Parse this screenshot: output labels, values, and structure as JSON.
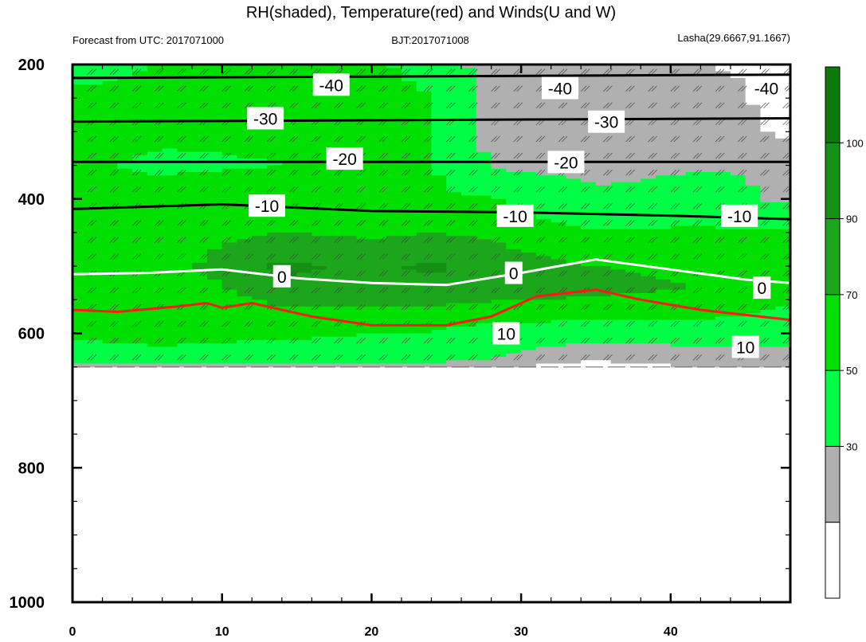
{
  "chart_data": {
    "type": "heatmap",
    "title": "RH(shaded), Temperature(red) and Winds(U and W)",
    "subtitle_left": "Forecast from UTC: 2017071000",
    "subtitle_center": "BJT:2017071008",
    "subtitle_right": "Lasha(29.6667,91.1667)",
    "xlabel": "",
    "ylabel": "",
    "xlim": [
      0,
      48
    ],
    "ylim": [
      1000,
      200
    ],
    "x_ticks": [
      0,
      10,
      20,
      30,
      40
    ],
    "y_ticks": [
      200,
      400,
      600,
      800,
      1000
    ],
    "colorbar": {
      "ticks": [
        "30",
        "50",
        "70",
        "90",
        "100"
      ],
      "levels": [
        0,
        30,
        50,
        70,
        80,
        90,
        100,
        110
      ],
      "colors": [
        "#ffffff",
        "#b0b0b0",
        "#00ff44",
        "#00e000",
        "#1ca61c",
        "#149014",
        "#0b7a0b"
      ]
    },
    "rh_columns": [
      {
        "x": 0,
        "rh": [
          60,
          75,
          75,
          72,
          74,
          75,
          80,
          75,
          70,
          75,
          72,
          68,
          62,
          40
        ]
      },
      {
        "x": 6,
        "rh": [
          72,
          75,
          72,
          68,
          75,
          75,
          75,
          72,
          70,
          72,
          72,
          70,
          62,
          40
        ]
      },
      {
        "x": 14,
        "rh": [
          72,
          75,
          72,
          70,
          75,
          80,
          92,
          88,
          80,
          75,
          72,
          68,
          60,
          40
        ]
      },
      {
        "x": 20,
        "rh": [
          72,
          75,
          72,
          74,
          72,
          78,
          88,
          85,
          80,
          72,
          70,
          66,
          60,
          40
        ]
      },
      {
        "x": 24,
        "rh": [
          66,
          70,
          72,
          72,
          72,
          80,
          92,
          88,
          80,
          72,
          70,
          64,
          55,
          40
        ]
      },
      {
        "x": 28,
        "rh": [
          40,
          45,
          45,
          48,
          72,
          78,
          85,
          85,
          78,
          72,
          66,
          58,
          48,
          30
        ]
      },
      {
        "x": 35,
        "rh": [
          35,
          40,
          42,
          42,
          55,
          72,
          80,
          82,
          78,
          70,
          62,
          45,
          30,
          20
        ]
      },
      {
        "x": 42,
        "rh": [
          30,
          42,
          45,
          48,
          60,
          72,
          78,
          80,
          76,
          70,
          62,
          50,
          45,
          30
        ]
      },
      {
        "x": 48,
        "rh": [
          25,
          20,
          25,
          48,
          45,
          72,
          75,
          72,
          70,
          65,
          58,
          50,
          45,
          30
        ]
      }
    ],
    "rh_levels_hpa": [
      200,
      250,
      300,
      350,
      400,
      450,
      500,
      530,
      560,
      580,
      600,
      620,
      640,
      650
    ],
    "temperature_isotherms": [
      {
        "label": "-40",
        "color": "black",
        "x": [
          0,
          48
        ],
        "p": [
          220,
          215
        ]
      },
      {
        "label": "-30",
        "color": "black",
        "x": [
          0,
          48
        ],
        "p": [
          285,
          280
        ]
      },
      {
        "label": "-20",
        "color": "black",
        "x": [
          0,
          48
        ],
        "p": [
          345,
          345
        ]
      },
      {
        "label": "-10",
        "color": "black",
        "x": [
          0,
          10,
          20,
          30,
          40,
          48
        ],
        "p": [
          415,
          408,
          418,
          420,
          425,
          430
        ]
      },
      {
        "label": "0",
        "color": "white",
        "x": [
          0,
          5,
          10,
          15,
          20,
          25,
          30,
          35,
          40,
          45,
          48
        ],
        "p": [
          512,
          510,
          505,
          518,
          525,
          528,
          510,
          490,
          505,
          520,
          525
        ]
      },
      {
        "label": "10",
        "color": "red",
        "x": [
          0,
          3,
          7,
          9,
          10,
          12,
          16,
          20,
          25,
          28,
          31,
          35,
          38,
          42,
          48
        ],
        "p": [
          565,
          568,
          560,
          555,
          562,
          555,
          575,
          588,
          588,
          575,
          545,
          535,
          550,
          565,
          580
        ]
      }
    ],
    "contour_labels": [
      {
        "text": "-40",
        "x": 17.3,
        "p": 230
      },
      {
        "text": "-40",
        "x": 32.6,
        "p": 235
      },
      {
        "text": "-40",
        "x": 46.4,
        "p": 235
      },
      {
        "text": "-30",
        "x": 12.9,
        "p": 280
      },
      {
        "text": "-30",
        "x": 35.7,
        "p": 285
      },
      {
        "text": "-20",
        "x": 18.2,
        "p": 340
      },
      {
        "text": "-20",
        "x": 33.0,
        "p": 345
      },
      {
        "text": "-10",
        "x": 13.0,
        "p": 410
      },
      {
        "text": "-10",
        "x": 29.6,
        "p": 425
      },
      {
        "text": "-10",
        "x": 44.6,
        "p": 425
      },
      {
        "text": "0",
        "x": 14.0,
        "p": 515
      },
      {
        "text": "0",
        "x": 29.5,
        "p": 510
      },
      {
        "text": "0",
        "x": 46.1,
        "p": 532
      },
      {
        "text": "10",
        "x": 29.0,
        "p": 600
      },
      {
        "text": "10",
        "x": 45.0,
        "p": 620
      }
    ]
  }
}
